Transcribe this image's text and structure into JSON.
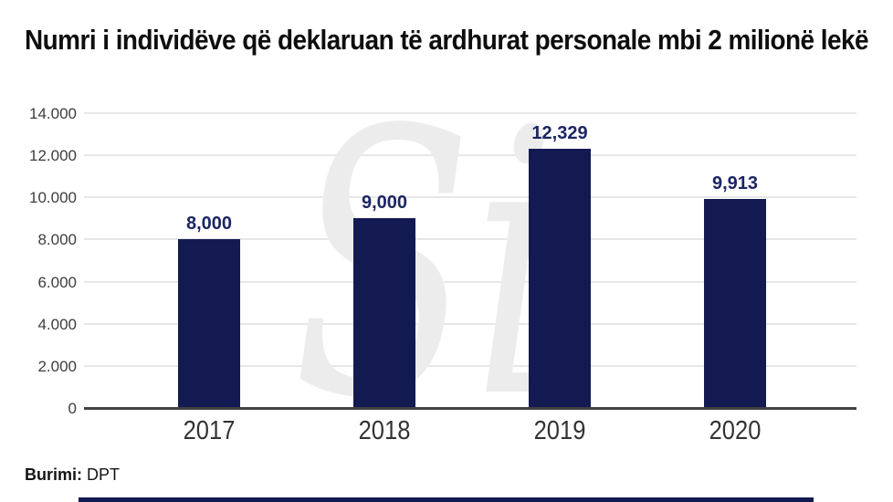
{
  "title": "Numri i individëve që deklaruan të ardhurat personale mbi 2 milionë lekë",
  "watermark": "Si",
  "source": {
    "label": "Burimi:",
    "value": "DPT"
  },
  "colors": {
    "bar": "#131A52",
    "data_label": "#1C2563",
    "axis_text": "#3D3D3D",
    "gridline": "#E7E7E7",
    "baseline": "#424242",
    "footer_bar": "#131A52",
    "watermark": "#ECECEC"
  },
  "chart_data": {
    "type": "bar",
    "title": "Numri i individëve që deklaruan të ardhurat personale mbi 2 milionë lekë",
    "categories": [
      "2017",
      "2018",
      "2019",
      "2020"
    ],
    "values": [
      8000,
      9000,
      12329,
      9913
    ],
    "data_labels": [
      "8,000",
      "9,000",
      "12,329",
      "9,913"
    ],
    "xlabel": "",
    "ylabel": "",
    "ylim": [
      0,
      14000
    ],
    "yticks": [
      14000,
      12000,
      10000,
      8000,
      6000,
      4000,
      2000,
      0
    ],
    "ytick_labels": [
      "14.000",
      "12.000",
      "10.000",
      "8.000",
      "6.000",
      "4.000",
      "2.000",
      "0"
    ],
    "grid": true,
    "legend": false,
    "source_note": "Burimi: DPT"
  }
}
